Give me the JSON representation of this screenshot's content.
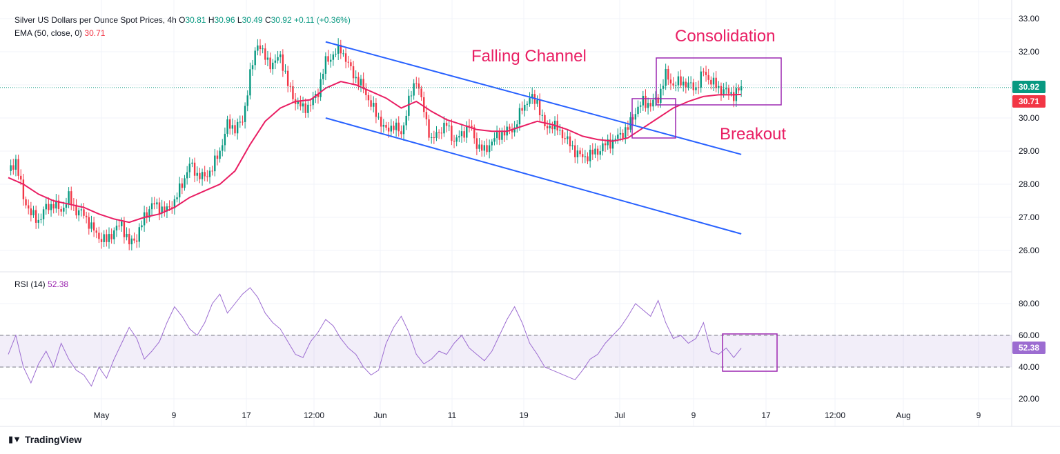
{
  "header": {
    "symbol": "Silver US Dollars per Ounce Spot Prices, 4h",
    "o_label": "O",
    "o": "30.81",
    "h_label": "H",
    "h": "30.96",
    "l_label": "L",
    "l": "30.49",
    "c_label": "C",
    "c": "30.92",
    "change": "+0.11 (+0.36%)",
    "ema_label": "EMA (50, close, 0)",
    "ema_value": "30.71",
    "rsi_label": "RSI (14)",
    "rsi_value": "52.38"
  },
  "brand": {
    "name": "TradingView"
  },
  "colors": {
    "up": "#089981",
    "down": "#f23645",
    "ema": "#e91e63",
    "channel": "#2962ff",
    "box": "#9c27b0",
    "rsi": "#9c6cd1",
    "annot": "#e91e63",
    "grid": "#f0f3fa"
  },
  "chart_data": {
    "type": "line",
    "price_axis": {
      "ticks": [
        "33.00",
        "32.00",
        "31.00",
        "30.00",
        "29.00",
        "28.00",
        "27.00",
        "26.00"
      ],
      "range": [
        25.4,
        33.3
      ]
    },
    "rsi_axis": {
      "ticks": [
        "80.00",
        "60.00",
        "40.00",
        "20.00"
      ],
      "range": [
        15,
        95
      ],
      "band": [
        40,
        60
      ]
    },
    "x_ticks": [
      "May",
      "9",
      "17",
      "12:00",
      "Jun",
      "11",
      "19",
      "Jul",
      "9",
      "17",
      "12:00",
      "Aug",
      "9"
    ],
    "last_price_label": "30.92",
    "last_ema_label": "30.71",
    "last_rsi_label": "52.38",
    "annotations": [
      {
        "text": "Falling Channel"
      },
      {
        "text": "Consolidation"
      },
      {
        "text": "Breakout"
      }
    ],
    "price_path": [
      [
        0,
        28.4
      ],
      [
        3,
        28.7
      ],
      [
        6,
        27.6
      ],
      [
        9,
        27.1
      ],
      [
        12,
        26.9
      ],
      [
        15,
        27.3
      ],
      [
        18,
        27.4
      ],
      [
        21,
        27.2
      ],
      [
        24,
        27.6
      ],
      [
        27,
        27.2
      ],
      [
        30,
        27.1
      ],
      [
        33,
        26.7
      ],
      [
        36,
        26.4
      ],
      [
        39,
        26.3
      ],
      [
        42,
        26.6
      ],
      [
        45,
        26.8
      ],
      [
        48,
        26.2
      ],
      [
        51,
        26.4
      ],
      [
        54,
        27.0
      ],
      [
        57,
        27.4
      ],
      [
        60,
        27.3
      ],
      [
        63,
        27.2
      ],
      [
        66,
        27.5
      ],
      [
        69,
        28.0
      ],
      [
        72,
        28.6
      ],
      [
        75,
        28.3
      ],
      [
        78,
        28.2
      ],
      [
        81,
        28.5
      ],
      [
        84,
        29.0
      ],
      [
        87,
        29.8
      ],
      [
        90,
        29.7
      ],
      [
        93,
        29.9
      ],
      [
        96,
        31.3
      ],
      [
        99,
        32.3
      ],
      [
        102,
        31.8
      ],
      [
        105,
        31.6
      ],
      [
        108,
        31.9
      ],
      [
        111,
        31.0
      ],
      [
        114,
        30.5
      ],
      [
        117,
        30.3
      ],
      [
        120,
        30.4
      ],
      [
        123,
        30.8
      ],
      [
        126,
        31.7
      ],
      [
        129,
        31.9
      ],
      [
        132,
        32.1
      ],
      [
        135,
        31.6
      ],
      [
        138,
        31.2
      ],
      [
        141,
        30.9
      ],
      [
        144,
        30.4
      ],
      [
        147,
        30.0
      ],
      [
        150,
        29.6
      ],
      [
        153,
        29.8
      ],
      [
        156,
        29.5
      ],
      [
        159,
        30.5
      ],
      [
        162,
        31.2
      ],
      [
        165,
        30.2
      ],
      [
        168,
        29.3
      ],
      [
        171,
        29.6
      ],
      [
        174,
        29.8
      ],
      [
        177,
        29.3
      ],
      [
        180,
        29.5
      ],
      [
        183,
        29.8
      ],
      [
        186,
        29.2
      ],
      [
        189,
        29.0
      ],
      [
        192,
        29.3
      ],
      [
        195,
        29.5
      ],
      [
        198,
        29.6
      ],
      [
        201,
        29.7
      ],
      [
        204,
        30.3
      ],
      [
        207,
        30.6
      ],
      [
        210,
        30.5
      ],
      [
        213,
        29.7
      ],
      [
        216,
        29.8
      ],
      [
        219,
        29.6
      ],
      [
        222,
        29.3
      ],
      [
        225,
        29.0
      ],
      [
        228,
        28.8
      ],
      [
        231,
        28.9
      ],
      [
        234,
        29.0
      ],
      [
        237,
        29.2
      ],
      [
        240,
        29.3
      ],
      [
        243,
        29.5
      ],
      [
        246,
        29.7
      ],
      [
        249,
        30.2
      ],
      [
        252,
        30.5
      ],
      [
        255,
        30.4
      ],
      [
        258,
        30.6
      ],
      [
        261,
        31.3
      ],
      [
        264,
        31.0
      ],
      [
        267,
        31.1
      ],
      [
        270,
        31.0
      ],
      [
        273,
        30.9
      ],
      [
        276,
        31.4
      ],
      [
        279,
        31.1
      ],
      [
        282,
        30.9
      ],
      [
        285,
        30.8
      ],
      [
        288,
        30.7
      ],
      [
        291,
        30.9
      ]
    ],
    "ema_path": [
      [
        0,
        28.2
      ],
      [
        6,
        28.0
      ],
      [
        12,
        27.7
      ],
      [
        18,
        27.5
      ],
      [
        24,
        27.4
      ],
      [
        30,
        27.3
      ],
      [
        36,
        27.1
      ],
      [
        42,
        26.95
      ],
      [
        48,
        26.85
      ],
      [
        54,
        27.0
      ],
      [
        60,
        27.1
      ],
      [
        66,
        27.3
      ],
      [
        72,
        27.6
      ],
      [
        78,
        27.8
      ],
      [
        84,
        28.0
      ],
      [
        90,
        28.4
      ],
      [
        96,
        29.2
      ],
      [
        102,
        29.9
      ],
      [
        108,
        30.3
      ],
      [
        114,
        30.5
      ],
      [
        120,
        30.55
      ],
      [
        126,
        30.9
      ],
      [
        132,
        31.1
      ],
      [
        138,
        31.0
      ],
      [
        144,
        30.8
      ],
      [
        150,
        30.6
      ],
      [
        156,
        30.3
      ],
      [
        162,
        30.5
      ],
      [
        168,
        30.2
      ],
      [
        174,
        29.95
      ],
      [
        180,
        29.8
      ],
      [
        186,
        29.65
      ],
      [
        192,
        29.6
      ],
      [
        198,
        29.6
      ],
      [
        204,
        29.75
      ],
      [
        210,
        29.9
      ],
      [
        216,
        29.8
      ],
      [
        222,
        29.65
      ],
      [
        228,
        29.45
      ],
      [
        234,
        29.35
      ],
      [
        240,
        29.3
      ],
      [
        246,
        29.4
      ],
      [
        252,
        29.7
      ],
      [
        258,
        30.0
      ],
      [
        264,
        30.3
      ],
      [
        270,
        30.5
      ],
      [
        276,
        30.65
      ],
      [
        282,
        30.7
      ],
      [
        288,
        30.7
      ],
      [
        291,
        30.71
      ]
    ],
    "channel_upper": [
      [
        126,
        32.3
      ],
      [
        291,
        28.9
      ]
    ],
    "channel_lower": [
      [
        126,
        30.0
      ],
      [
        291,
        26.5
      ]
    ],
    "rsi_path": [
      [
        0,
        48
      ],
      [
        3,
        60
      ],
      [
        6,
        40
      ],
      [
        9,
        30
      ],
      [
        12,
        42
      ],
      [
        15,
        50
      ],
      [
        18,
        40
      ],
      [
        21,
        55
      ],
      [
        24,
        45
      ],
      [
        27,
        38
      ],
      [
        30,
        35
      ],
      [
        33,
        28
      ],
      [
        36,
        40
      ],
      [
        39,
        33
      ],
      [
        42,
        45
      ],
      [
        45,
        55
      ],
      [
        48,
        65
      ],
      [
        51,
        58
      ],
      [
        54,
        45
      ],
      [
        57,
        50
      ],
      [
        60,
        56
      ],
      [
        63,
        68
      ],
      [
        66,
        78
      ],
      [
        69,
        72
      ],
      [
        72,
        64
      ],
      [
        75,
        60
      ],
      [
        78,
        68
      ],
      [
        81,
        80
      ],
      [
        84,
        86
      ],
      [
        87,
        74
      ],
      [
        90,
        80
      ],
      [
        93,
        86
      ],
      [
        96,
        90
      ],
      [
        99,
        84
      ],
      [
        102,
        74
      ],
      [
        105,
        68
      ],
      [
        108,
        64
      ],
      [
        111,
        56
      ],
      [
        114,
        48
      ],
      [
        117,
        46
      ],
      [
        120,
        56
      ],
      [
        123,
        62
      ],
      [
        126,
        70
      ],
      [
        129,
        66
      ],
      [
        132,
        58
      ],
      [
        135,
        52
      ],
      [
        138,
        48
      ],
      [
        141,
        40
      ],
      [
        144,
        35
      ],
      [
        147,
        38
      ],
      [
        150,
        55
      ],
      [
        153,
        65
      ],
      [
        156,
        72
      ],
      [
        159,
        62
      ],
      [
        162,
        48
      ],
      [
        165,
        42
      ],
      [
        168,
        45
      ],
      [
        171,
        50
      ],
      [
        174,
        48
      ],
      [
        177,
        55
      ],
      [
        180,
        60
      ],
      [
        183,
        52
      ],
      [
        186,
        48
      ],
      [
        189,
        44
      ],
      [
        192,
        50
      ],
      [
        195,
        60
      ],
      [
        198,
        70
      ],
      [
        201,
        78
      ],
      [
        204,
        68
      ],
      [
        207,
        55
      ],
      [
        210,
        48
      ],
      [
        213,
        40
      ],
      [
        216,
        38
      ],
      [
        219,
        36
      ],
      [
        222,
        34
      ],
      [
        225,
        32
      ],
      [
        228,
        38
      ],
      [
        231,
        45
      ],
      [
        234,
        48
      ],
      [
        237,
        55
      ],
      [
        240,
        60
      ],
      [
        243,
        65
      ],
      [
        246,
        72
      ],
      [
        249,
        80
      ],
      [
        252,
        76
      ],
      [
        255,
        72
      ],
      [
        258,
        82
      ],
      [
        261,
        68
      ],
      [
        264,
        58
      ],
      [
        267,
        60
      ],
      [
        270,
        55
      ],
      [
        273,
        58
      ],
      [
        276,
        68
      ],
      [
        279,
        50
      ],
      [
        282,
        48
      ],
      [
        285,
        52
      ],
      [
        288,
        46
      ],
      [
        291,
        52
      ]
    ]
  }
}
